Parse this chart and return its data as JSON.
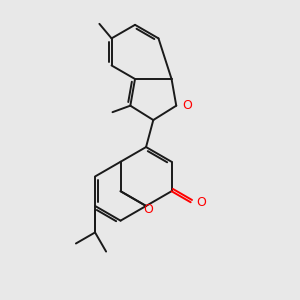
{
  "background_color": "#e8e8e8",
  "bond_color": "#1a1a1a",
  "oxygen_color": "#ff0000",
  "line_width": 1.4,
  "figsize": [
    3.0,
    3.0
  ],
  "dpi": 100,
  "xlim": [
    0,
    10
  ],
  "ylim": [
    0,
    10
  ]
}
